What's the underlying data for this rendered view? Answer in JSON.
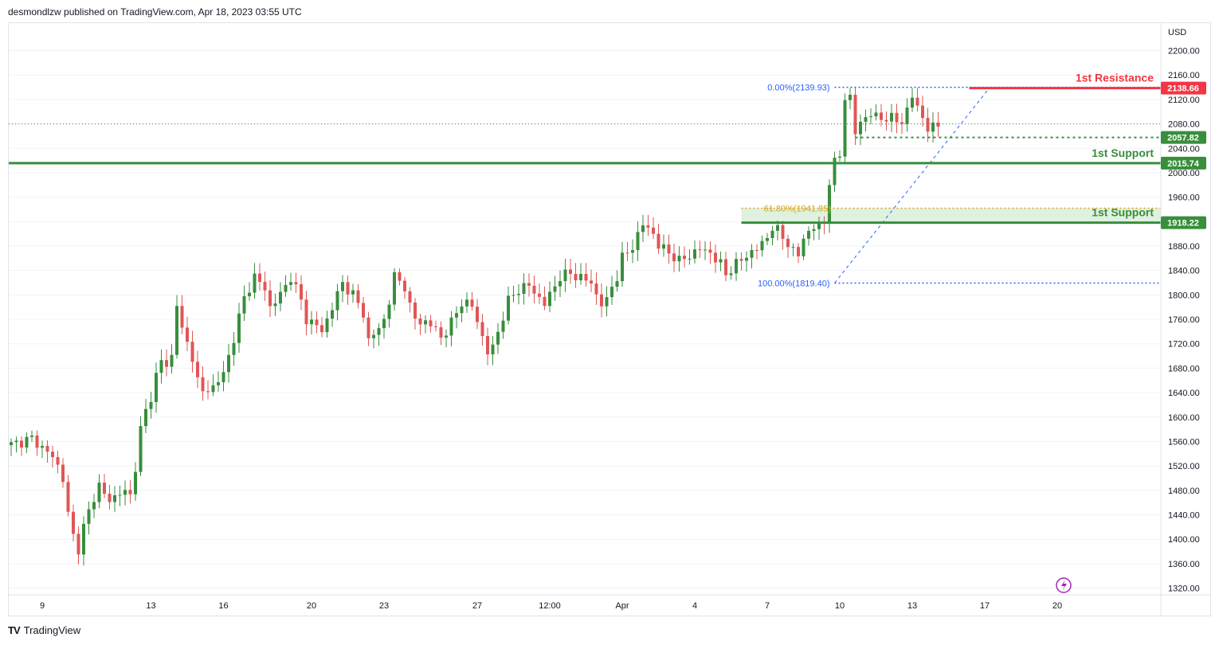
{
  "header": {
    "text": "desmondlzw published on TradingView.com, Apr 18, 2023 03:55 UTC"
  },
  "footer": {
    "logo": "TV",
    "text": "TradingView"
  },
  "chart_data": {
    "type": "candlestick",
    "currency": "USD",
    "y_ticks": [
      "2200.00",
      "2160.00",
      "2120.00",
      "2080.00",
      "2040.00",
      "2000.00",
      "1960.00",
      "1920.00",
      "1880.00",
      "1840.00",
      "1800.00",
      "1760.00",
      "1720.00",
      "1680.00",
      "1640.00",
      "1600.00",
      "1560.00",
      "1520.00",
      "1480.00",
      "1440.00",
      "1400.00",
      "1360.00",
      "1320.00"
    ],
    "y_tick_values": [
      2200,
      2160,
      2120,
      2080,
      2040,
      2000,
      1960,
      1920,
      1880,
      1840,
      1800,
      1760,
      1720,
      1680,
      1640,
      1600,
      1560,
      1520,
      1480,
      1440,
      1400,
      1360,
      1320
    ],
    "ylim": [
      1309,
      2245
    ],
    "x_labels": [
      "9",
      "13",
      "16",
      "20",
      "23",
      "27",
      "12:00",
      "Apr",
      "4",
      "7",
      "10",
      "13",
      "17",
      "20"
    ],
    "x_label_index": [
      6,
      27,
      41,
      58,
      72,
      90,
      104,
      118,
      132,
      146,
      160,
      174,
      188,
      202
    ],
    "candle_count": 211,
    "levels": [
      {
        "name": "1st Resistance",
        "value": 2138.66,
        "label": "2138.66",
        "color": "#f23645"
      },
      {
        "name": "1st Support",
        "value": 2015.74,
        "label": "2015.74",
        "color": "#388e3c"
      },
      {
        "name": "1st Support",
        "value": 1918.22,
        "label": "1918.22",
        "color": "#388e3c"
      }
    ],
    "current_price": {
      "value": 2057.82,
      "label": "2057.82"
    },
    "fibonacci": [
      {
        "label": "0.00%(2139.93)",
        "value": 2139.93,
        "color": "#2962ff"
      },
      {
        "label": "61.80%(1941.85)",
        "value": 1941.85,
        "color": "#d9a520"
      },
      {
        "label": "100.00%(1819.40)",
        "value": 1819.4,
        "color": "#2962ff"
      }
    ],
    "price_line": 2080,
    "colors": {
      "up": "#388e3c",
      "down": "#e05656",
      "grid": "#f0f3fa"
    },
    "anchors": [
      [
        0,
        1555
      ],
      [
        4,
        1565
      ],
      [
        8,
        1535
      ],
      [
        9,
        1520
      ],
      [
        10,
        1500
      ],
      [
        11,
        1440
      ],
      [
        12,
        1405
      ],
      [
        13,
        1385
      ],
      [
        14,
        1420
      ],
      [
        15,
        1445
      ],
      [
        17,
        1490
      ],
      [
        19,
        1460
      ],
      [
        21,
        1480
      ],
      [
        23,
        1470
      ],
      [
        24,
        1520
      ],
      [
        25,
        1580
      ],
      [
        26,
        1610
      ],
      [
        27,
        1630
      ],
      [
        28,
        1670
      ],
      [
        29,
        1695
      ],
      [
        30,
        1680
      ],
      [
        31,
        1700
      ],
      [
        32,
        1790
      ],
      [
        33,
        1740
      ],
      [
        34,
        1720
      ],
      [
        35,
        1700
      ],
      [
        36,
        1660
      ],
      [
        37,
        1640
      ],
      [
        39,
        1650
      ],
      [
        41,
        1670
      ],
      [
        43,
        1730
      ],
      [
        45,
        1795
      ],
      [
        47,
        1830
      ],
      [
        49,
        1810
      ],
      [
        50,
        1780
      ],
      [
        52,
        1800
      ],
      [
        54,
        1830
      ],
      [
        56,
        1790
      ],
      [
        57,
        1760
      ],
      [
        59,
        1750
      ],
      [
        60,
        1740
      ],
      [
        62,
        1780
      ],
      [
        64,
        1820
      ],
      [
        66,
        1800
      ],
      [
        68,
        1770
      ],
      [
        69,
        1725
      ],
      [
        70,
        1735
      ],
      [
        71,
        1745
      ],
      [
        72,
        1760
      ],
      [
        73,
        1790
      ],
      [
        74,
        1830
      ],
      [
        76,
        1815
      ],
      [
        77,
        1780
      ],
      [
        78,
        1760
      ],
      [
        80,
        1755
      ],
      [
        82,
        1745
      ],
      [
        83,
        1730
      ],
      [
        84,
        1740
      ],
      [
        86,
        1770
      ],
      [
        87,
        1790
      ],
      [
        89,
        1780
      ],
      [
        90,
        1760
      ],
      [
        91,
        1730
      ],
      [
        92,
        1705
      ],
      [
        93,
        1715
      ],
      [
        94,
        1740
      ],
      [
        96,
        1790
      ],
      [
        98,
        1810
      ],
      [
        100,
        1815
      ],
      [
        102,
        1795
      ],
      [
        103,
        1785
      ],
      [
        104,
        1800
      ],
      [
        106,
        1830
      ],
      [
        108,
        1835
      ],
      [
        110,
        1828
      ],
      [
        112,
        1820
      ],
      [
        113,
        1800
      ],
      [
        114,
        1785
      ],
      [
        115,
        1790
      ],
      [
        116,
        1815
      ],
      [
        117,
        1830
      ],
      [
        118,
        1860
      ],
      [
        120,
        1880
      ],
      [
        122,
        1915
      ],
      [
        123,
        1910
      ],
      [
        124,
        1900
      ],
      [
        125,
        1880
      ],
      [
        127,
        1870
      ],
      [
        129,
        1855
      ],
      [
        131,
        1865
      ],
      [
        133,
        1875
      ],
      [
        135,
        1870
      ],
      [
        136,
        1858
      ],
      [
        137,
        1850
      ],
      [
        138,
        1835
      ],
      [
        140,
        1850
      ],
      [
        142,
        1865
      ],
      [
        144,
        1875
      ],
      [
        146,
        1895
      ],
      [
        147,
        1910
      ],
      [
        148,
        1905
      ],
      [
        149,
        1895
      ],
      [
        150,
        1885
      ],
      [
        151,
        1870
      ],
      [
        152,
        1865
      ],
      [
        153,
        1895
      ],
      [
        155,
        1910
      ],
      [
        156,
        1915
      ],
      [
        157,
        1920
      ],
      [
        158,
        1985
      ],
      [
        159,
        2015
      ],
      [
        160,
        2030
      ],
      [
        161,
        2125
      ],
      [
        162,
        2120
      ],
      [
        163,
        2065
      ],
      [
        164,
        2085
      ],
      [
        166,
        2095
      ],
      [
        168,
        2090
      ],
      [
        170,
        2088
      ],
      [
        172,
        2085
      ],
      [
        173,
        2100
      ],
      [
        174,
        2125
      ],
      [
        175,
        2110
      ],
      [
        176,
        2090
      ],
      [
        177,
        2070
      ],
      [
        178,
        2075
      ],
      [
        179,
        2080
      ]
    ]
  }
}
